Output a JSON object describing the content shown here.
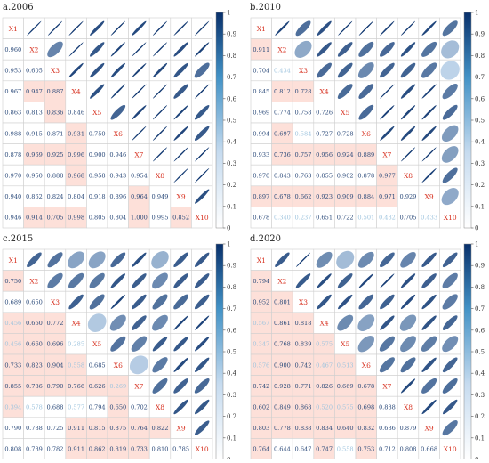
{
  "colors": {
    "ellipse_dark": "#08306b",
    "ellipse_mid": "#2c7fb8",
    "ellipse_light": "#9ecae1",
    "cell_pink": "#fde0d9",
    "value_dark": "#2b4a7a",
    "value_light": "#9ec4de",
    "label_red": "#d7301f",
    "grid": "#cfcfcf"
  },
  "colorbar": {
    "ticks": [
      "0",
      "0.1",
      "0.2",
      "0.3",
      "0.4",
      "0.5",
      "0.6",
      "0.7",
      "0.8",
      "0.9",
      "1"
    ]
  },
  "chart_data": [
    {
      "type": "heatmap",
      "title": "a.2006",
      "variables": [
        "X1",
        "X2",
        "X3",
        "X4",
        "X5",
        "X6",
        "X7",
        "X8",
        "X9",
        "X10"
      ],
      "value_labels": [
        [],
        [
          "0.960"
        ],
        [
          "0.953",
          "0.605"
        ],
        [
          "0.967",
          "0.947",
          "0.887"
        ],
        [
          "0.863",
          "0.813",
          "0.836",
          "0.846"
        ],
        [
          "0.988",
          "0.915",
          "0.871",
          "0.931",
          "0.750"
        ],
        [
          "0.878",
          "0.969",
          "0.925",
          "0.996",
          "0.900",
          "0.946"
        ],
        [
          "0.970",
          "0.950",
          "0.888",
          "0.968",
          "0.958",
          "0.943",
          "0.954"
        ],
        [
          "0.940",
          "0.862",
          "0.824",
          "0.804",
          "0.918",
          "0.896",
          "0.964",
          "0.949"
        ],
        [
          "0.946",
          "0.914",
          "0.705",
          "0.998",
          "0.805",
          "0.804",
          "1.000",
          "0.995",
          "0.852"
        ]
      ],
      "highlighted": [
        [
          3,
          1
        ],
        [
          3,
          2
        ],
        [
          4,
          2
        ],
        [
          5,
          3
        ],
        [
          6,
          1
        ],
        [
          6,
          2
        ],
        [
          6,
          3
        ],
        [
          7,
          3
        ],
        [
          8,
          6
        ],
        [
          9,
          1
        ],
        [
          9,
          2
        ],
        [
          9,
          3
        ],
        [
          9,
          6
        ],
        [
          9,
          8
        ]
      ]
    },
    {
      "type": "heatmap",
      "title": "b.2010",
      "variables": [
        "X1",
        "X2",
        "X3",
        "X4",
        "X5",
        "X6",
        "X7",
        "X8",
        "X9",
        "X10"
      ],
      "value_labels": [
        [],
        [
          "0.911"
        ],
        [
          "0.704",
          "0.434"
        ],
        [
          "0.845",
          "0.812",
          "0.728"
        ],
        [
          "0.969",
          "0.774",
          "0.758",
          "0.726"
        ],
        [
          "0.994",
          "0.697",
          "0.584",
          "0.727",
          "0.728"
        ],
        [
          "0.933",
          "0.736",
          "0.757",
          "0.956",
          "0.924",
          "0.889"
        ],
        [
          "0.970",
          "0.843",
          "0.763",
          "0.855",
          "0.902",
          "0.878",
          "0.977"
        ],
        [
          "0.897",
          "0.678",
          "0.662",
          "0.923",
          "0.909",
          "0.884",
          "0.971",
          "0.929"
        ],
        [
          "0.678",
          "0.340",
          "0.237",
          "0.651",
          "0.722",
          "0.501",
          "0.482",
          "0.705",
          "0.433"
        ]
      ],
      "highlighted": [
        [
          1,
          0
        ],
        [
          3,
          1
        ],
        [
          3,
          2
        ],
        [
          5,
          1
        ],
        [
          6,
          1
        ],
        [
          6,
          2
        ],
        [
          6,
          3
        ],
        [
          6,
          4
        ],
        [
          6,
          5
        ],
        [
          7,
          6
        ],
        [
          8,
          0
        ],
        [
          8,
          1
        ],
        [
          8,
          2
        ],
        [
          8,
          3
        ],
        [
          8,
          4
        ],
        [
          8,
          5
        ],
        [
          8,
          6
        ]
      ]
    },
    {
      "type": "heatmap",
      "title": "c.2015",
      "variables": [
        "X1",
        "X2",
        "X3",
        "X4",
        "X5",
        "X6",
        "X7",
        "X8",
        "X9",
        "X10"
      ],
      "value_labels": [
        [],
        [
          "0.750"
        ],
        [
          "0.689",
          "0.650"
        ],
        [
          "0.456",
          "0.660",
          "0.772"
        ],
        [
          "0.456",
          "0.660",
          "0.696",
          "0.285"
        ],
        [
          "0.733",
          "0.823",
          "0.904",
          "0.558",
          "0.685"
        ],
        [
          "0.855",
          "0.786",
          "0.790",
          "0.766",
          "0.626",
          "0.269"
        ],
        [
          "0.394",
          "0.578",
          "0.688",
          "0.577",
          "0.794",
          "0.650",
          "0.702"
        ],
        [
          "0.790",
          "0.788",
          "0.725",
          "0.911",
          "0.815",
          "0.875",
          "0.764",
          "0.822"
        ],
        [
          "0.808",
          "0.789",
          "0.782",
          "0.911",
          "0.862",
          "0.819",
          "0.733",
          "0.810",
          "0.785"
        ]
      ],
      "highlighted": [
        [
          1,
          0
        ],
        [
          3,
          0
        ],
        [
          3,
          1
        ],
        [
          3,
          2
        ],
        [
          4,
          0
        ],
        [
          4,
          1
        ],
        [
          4,
          2
        ],
        [
          5,
          0
        ],
        [
          5,
          1
        ],
        [
          5,
          2
        ],
        [
          5,
          3
        ],
        [
          6,
          0
        ],
        [
          6,
          1
        ],
        [
          6,
          2
        ],
        [
          6,
          3
        ],
        [
          6,
          4
        ],
        [
          6,
          5
        ],
        [
          7,
          0
        ],
        [
          7,
          5
        ],
        [
          8,
          3
        ],
        [
          8,
          4
        ],
        [
          8,
          5
        ],
        [
          8,
          6
        ],
        [
          8,
          7
        ],
        [
          9,
          3
        ],
        [
          9,
          4
        ],
        [
          9,
          5
        ],
        [
          9,
          6
        ]
      ]
    },
    {
      "type": "heatmap",
      "title": "d.2020",
      "variables": [
        "X1",
        "X2",
        "X3",
        "X4",
        "X5",
        "X6",
        "X7",
        "X8",
        "X9",
        "X10"
      ],
      "value_labels": [
        [],
        [
          "0.794"
        ],
        [
          "0.952",
          "0.801"
        ],
        [
          "0.567",
          "0.861",
          "0.818"
        ],
        [
          "0.347",
          "0.768",
          "0.839",
          "0.575"
        ],
        [
          "0.576",
          "0.900",
          "0.742",
          "0.467",
          "0.513"
        ],
        [
          "0.742",
          "0.928",
          "0.771",
          "0.826",
          "0.669",
          "0.678"
        ],
        [
          "0.602",
          "0.849",
          "0.868",
          "0.520",
          "0.575",
          "0.698",
          "0.888"
        ],
        [
          "0.803",
          "0.778",
          "0.838",
          "0.834",
          "0.640",
          "0.832",
          "0.686",
          "0.879"
        ],
        [
          "0.764",
          "0.644",
          "0.647",
          "0.747",
          "0.558",
          "0.753",
          "0.712",
          "0.808",
          "0.668"
        ]
      ],
      "highlighted": [
        [
          1,
          0
        ],
        [
          2,
          0
        ],
        [
          2,
          1
        ],
        [
          3,
          0
        ],
        [
          3,
          1
        ],
        [
          3,
          2
        ],
        [
          4,
          0
        ],
        [
          4,
          1
        ],
        [
          4,
          2
        ],
        [
          4,
          3
        ],
        [
          5,
          0
        ],
        [
          5,
          1
        ],
        [
          5,
          2
        ],
        [
          5,
          3
        ],
        [
          5,
          4
        ],
        [
          6,
          0
        ],
        [
          6,
          1
        ],
        [
          6,
          2
        ],
        [
          6,
          3
        ],
        [
          6,
          4
        ],
        [
          6,
          5
        ],
        [
          7,
          0
        ],
        [
          7,
          1
        ],
        [
          7,
          2
        ],
        [
          7,
          3
        ],
        [
          7,
          4
        ],
        [
          7,
          5
        ],
        [
          8,
          0
        ],
        [
          8,
          1
        ],
        [
          8,
          2
        ],
        [
          8,
          3
        ],
        [
          8,
          4
        ],
        [
          8,
          5
        ],
        [
          9,
          0
        ],
        [
          9,
          3
        ],
        [
          9,
          5
        ]
      ]
    }
  ]
}
